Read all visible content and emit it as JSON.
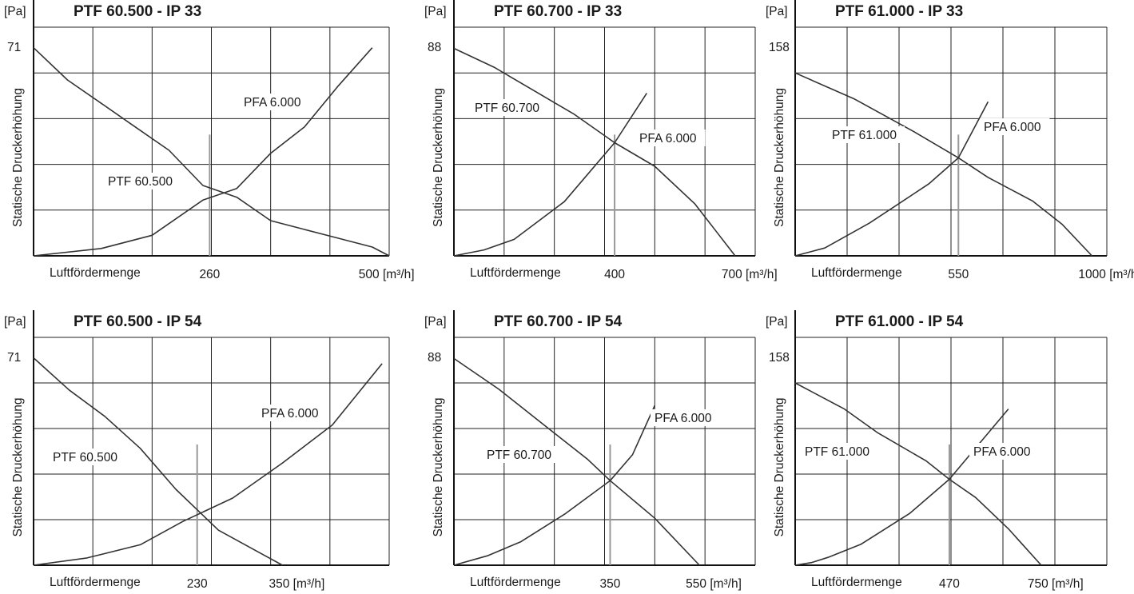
{
  "chart_data": [
    {
      "type": "line",
      "title": "PTF 60.500 - IP 33",
      "ylabel": "Statische Druckerhöhung",
      "yunit": "[Pa]",
      "xlabel": "Luftfördermenge",
      "xunit": "[m³/h]",
      "xlim": [
        0,
        525
      ],
      "ylim": [
        0,
        78
      ],
      "x_tick_labels": [
        {
          "value": 260,
          "text": "260"
        },
        {
          "value": 500,
          "text": "500"
        }
      ],
      "y_tick_labels": [
        {
          "value": 71,
          "text": "71"
        }
      ],
      "operating_point_x": 260,
      "series": [
        {
          "name": "PTF 60.500",
          "x": [
            0,
            50,
            100,
            150,
            200,
            250,
            300,
            350,
            400,
            450,
            500,
            525
          ],
          "y": [
            71,
            60,
            52,
            44,
            36,
            24,
            20,
            12,
            9,
            6,
            3,
            0
          ]
        },
        {
          "name": "PFA 6.000",
          "x": [
            0,
            100,
            175,
            250,
            300,
            350,
            400,
            450,
            500
          ],
          "y": [
            0,
            2.5,
            7,
            19,
            23,
            35,
            44,
            58,
            71
          ]
        }
      ]
    },
    {
      "type": "line",
      "title": "PTF 60.700 - IP 33",
      "ylabel": "Statische Druckerhöhung",
      "yunit": "[Pa]",
      "xlabel": "Luftfördermenge",
      "xunit": "[m³/h]",
      "xlim": [
        0,
        750
      ],
      "ylim": [
        0,
        97
      ],
      "x_tick_labels": [
        {
          "value": 400,
          "text": "400"
        },
        {
          "value": 700,
          "text": "700"
        }
      ],
      "y_tick_labels": [
        {
          "value": 88,
          "text": "88"
        }
      ],
      "operating_point_x": 400,
      "series": [
        {
          "name": "PTF 60.700",
          "x": [
            0,
            100,
            200,
            300,
            400,
            500,
            600,
            700
          ],
          "y": [
            88,
            80,
            70,
            60,
            48,
            38,
            22,
            0
          ]
        },
        {
          "name": "PFA 6.000",
          "x": [
            0,
            75,
            150,
            275,
            400,
            480
          ],
          "y": [
            0,
            2.5,
            7,
            23,
            48,
            69
          ]
        }
      ]
    },
    {
      "type": "line",
      "title": "PTF 61.000 - IP 33",
      "ylabel": "Statische Druckerhöhung",
      "yunit": "[Pa]",
      "xlabel": "Luftfördermenge",
      "xunit": "[m³/h]",
      "xlim": [
        0,
        1050
      ],
      "ylim": [
        0,
        175
      ],
      "x_tick_labels": [
        {
          "value": 550,
          "text": "550"
        },
        {
          "value": 1000,
          "text": "1000"
        }
      ],
      "y_tick_labels": [
        {
          "value": 158,
          "text": "158"
        }
      ],
      "operating_point_x": 550,
      "series": [
        {
          "name": "PTF 61.000",
          "x": [
            0,
            200,
            400,
            550,
            650,
            800,
            900,
            1000
          ],
          "y": [
            140,
            120,
            95,
            75,
            60,
            42,
            24,
            0
          ]
        },
        {
          "name": "PFA 6.000",
          "x": [
            0,
            100,
            250,
            450,
            550,
            650
          ],
          "y": [
            0,
            6,
            25,
            55,
            75,
            118
          ]
        }
      ]
    },
    {
      "type": "line",
      "title": "PTF 60.500 - IP 54",
      "ylabel": "Statische Druckerhöhung",
      "yunit": "[Pa]",
      "xlabel": "Luftfördermenge",
      "xunit": "[m³/h]",
      "xlim": [
        0,
        500
      ],
      "ylim": [
        0,
        78
      ],
      "x_tick_labels": [
        {
          "value": 230,
          "text": "230"
        },
        {
          "value": 350,
          "text": "350"
        }
      ],
      "y_tick_labels": [
        {
          "value": 71,
          "text": "71"
        }
      ],
      "operating_point_x": 230,
      "series": [
        {
          "name": "PTF 60.500",
          "x": [
            0,
            50,
            100,
            150,
            200,
            230,
            260,
            320,
            350
          ],
          "y": [
            71,
            60,
            51,
            40,
            26,
            19,
            12,
            4,
            0
          ]
        },
        {
          "name": "PFA 6.000",
          "x": [
            0,
            75,
            150,
            210,
            280,
            350,
            420,
            490
          ],
          "y": [
            0,
            2.5,
            7,
            15,
            23,
            35,
            48,
            69
          ]
        }
      ]
    },
    {
      "type": "line",
      "title": "PTF 60.700 - IP 54",
      "ylabel": "Statische Druckerhöhung",
      "yunit": "[Pa]",
      "xlabel": "Luftfördermenge",
      "xunit": "[m³/h]",
      "xlim": [
        0,
        675
      ],
      "ylim": [
        0,
        97
      ],
      "x_tick_labels": [
        {
          "value": 350,
          "text": "350"
        },
        {
          "value": 550,
          "text": "550"
        }
      ],
      "y_tick_labels": [
        {
          "value": 88,
          "text": "88"
        }
      ],
      "operating_point_x": 350,
      "series": [
        {
          "name": "PTF 60.700",
          "x": [
            0,
            100,
            200,
            300,
            350,
            450,
            550
          ],
          "y": [
            88,
            75,
            60,
            45,
            36,
            20,
            0
          ]
        },
        {
          "name": "PFA 6.000",
          "x": [
            0,
            75,
            150,
            250,
            350,
            400,
            450
          ],
          "y": [
            0,
            4,
            10,
            22,
            36,
            47,
            68
          ]
        }
      ]
    },
    {
      "type": "line",
      "title": "PTF 61.000 - IP 54",
      "ylabel": "Statische Druckerhöhung",
      "yunit": "[Pa]",
      "xlabel": "Luftfördermenge",
      "xunit": "[m³/h]",
      "xlim": [
        0,
        950
      ],
      "ylim": [
        0,
        175
      ],
      "x_tick_labels": [
        {
          "value": 470,
          "text": "470"
        },
        {
          "value": 750,
          "text": "750"
        }
      ],
      "y_tick_labels": [
        {
          "value": 158,
          "text": "158"
        }
      ],
      "operating_point_x": 470,
      "series": [
        {
          "name": "PTF 61.000",
          "x": [
            0,
            150,
            250,
            400,
            470,
            550,
            650,
            750
          ],
          "y": [
            140,
            120,
            102,
            80,
            66,
            52,
            28,
            0
          ]
        },
        {
          "name": "PFA 6.000",
          "x": [
            0,
            50,
            100,
            200,
            350,
            470,
            550,
            650
          ],
          "y": [
            0,
            2,
            6,
            16,
            40,
            66,
            90,
            120
          ]
        }
      ]
    }
  ]
}
